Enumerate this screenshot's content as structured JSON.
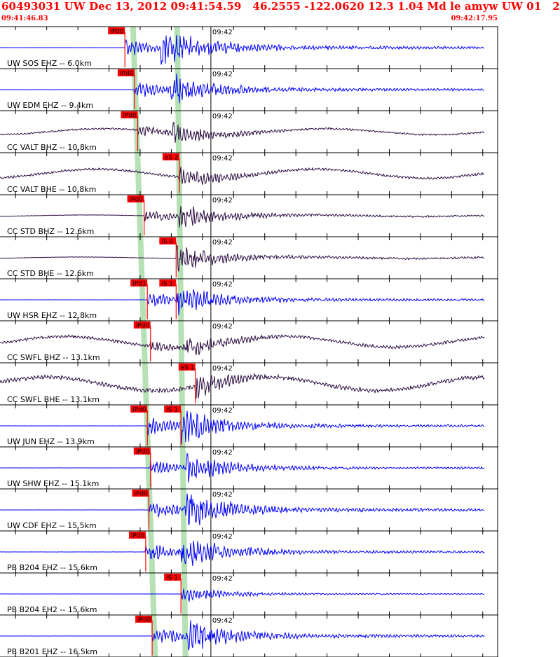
{
  "header": {
    "title": "60493031 UW Dec 13, 2012 09:41:54.59   46.2555 -122.0620 12.3 1.04 Md le amyw UW 01   2",
    "start_time": "09:41:46.83",
    "end_time": "09:42:17.95"
  },
  "colors": {
    "header_text": "#ff0000",
    "pick_flag": "#ff0000",
    "pick_band": "#a8dca8",
    "trace_hz": "#0000ff",
    "trace_bb": "#2a0a40",
    "grid": "#000000"
  },
  "chart_data": {
    "type": "line",
    "title": "60493031 UW Dec 13, 2012 09:41:54.59   46.2555 -122.0620 12.3 1.04 Md le amyw UW 01   2",
    "x_start": "09:41:46.83",
    "x_end": "09:42:17.95",
    "minute_tick_label": "09:42",
    "traces": [
      {
        "label": "UW SOS EHZ -- 6.0km",
        "picks": [
          {
            "name": "iPd0",
            "time": 7.8
          }
        ],
        "color": "hz",
        "amp": 1.0,
        "noise": 0.004
      },
      {
        "label": "UW EDM EHZ -- 9.4km",
        "picks": [
          {
            "name": "iPd0",
            "time": 8.4
          }
        ],
        "color": "hz",
        "amp": 0.85,
        "noise": 0.006
      },
      {
        "label": "CC VALT BHZ -- 10.8km",
        "picks": [
          {
            "name": "iPd0",
            "time": 8.6
          }
        ],
        "color": "bb",
        "amp": 0.55,
        "noise": 0.08
      },
      {
        "label": "CC VALT BHE -- 10.8km",
        "picks": [
          {
            "name": "eS 2",
            "time": 11.2
          }
        ],
        "color": "bb",
        "amp": 0.5,
        "noise": 0.12
      },
      {
        "label": "CC STD BHZ -- 12.6km",
        "picks": [
          {
            "name": "iPd0",
            "time": 9.0
          }
        ],
        "color": "bb",
        "amp": 0.6,
        "noise": 0.02
      },
      {
        "label": "CC STD BHE -- 12.6km",
        "picks": [
          {
            "name": "iS 0",
            "time": 11.0
          }
        ],
        "color": "bb",
        "amp": 0.7,
        "noise": 0.02
      },
      {
        "label": "UW HSR EHZ -- 12.8km",
        "picks": [
          {
            "name": "iPd1",
            "time": 9.2
          },
          {
            "name": "iS 1",
            "time": 11.0
          }
        ],
        "color": "hz",
        "amp": 0.75,
        "noise": 0.006
      },
      {
        "label": "CC SWFL BHZ -- 13.1km",
        "picks": [
          {
            "name": "iPd0",
            "time": 9.4
          }
        ],
        "color": "bb",
        "amp": 0.55,
        "noise": 0.14
      },
      {
        "label": "CC SWFL BHE -- 13.1km",
        "picks": [
          {
            "name": "eS 1",
            "time": 12.2
          }
        ],
        "color": "bb",
        "amp": 0.6,
        "noise": 0.18
      },
      {
        "label": "UW JUN EHZ -- 13.9km",
        "picks": [
          {
            "name": "iPd0",
            "time": 9.2
          },
          {
            "name": "iS 1",
            "time": 11.3
          }
        ],
        "color": "hz",
        "amp": 0.85,
        "noise": 0.005
      },
      {
        "label": "UW SHW EHZ -- 15.1km",
        "picks": [
          {
            "name": "iPd0",
            "time": 9.4
          }
        ],
        "color": "hz",
        "amp": 0.75,
        "noise": 0.006
      },
      {
        "label": "UW CDF EHZ -- 15.5km",
        "picks": [
          {
            "name": "iPd0",
            "time": 9.3
          }
        ],
        "color": "hz",
        "amp": 1.0,
        "noise": 0.005
      },
      {
        "label": "PB B204 EHZ -- 15.6km",
        "picks": [
          {
            "name": "iPd0",
            "time": 9.1
          }
        ],
        "color": "hz",
        "amp": 0.85,
        "noise": 0.006
      },
      {
        "label": "PB B204 EH2 -- 15.6km",
        "picks": [
          {
            "name": "iS 1",
            "time": 11.3
          }
        ],
        "color": "hz",
        "amp": 0.4,
        "noise": 0.01
      },
      {
        "label": "PB B201 EHZ -- 16.5km",
        "picks": [
          {
            "name": "iPd0",
            "time": 9.5
          }
        ],
        "color": "hz",
        "amp": 0.9,
        "noise": 0.005
      }
    ]
  }
}
